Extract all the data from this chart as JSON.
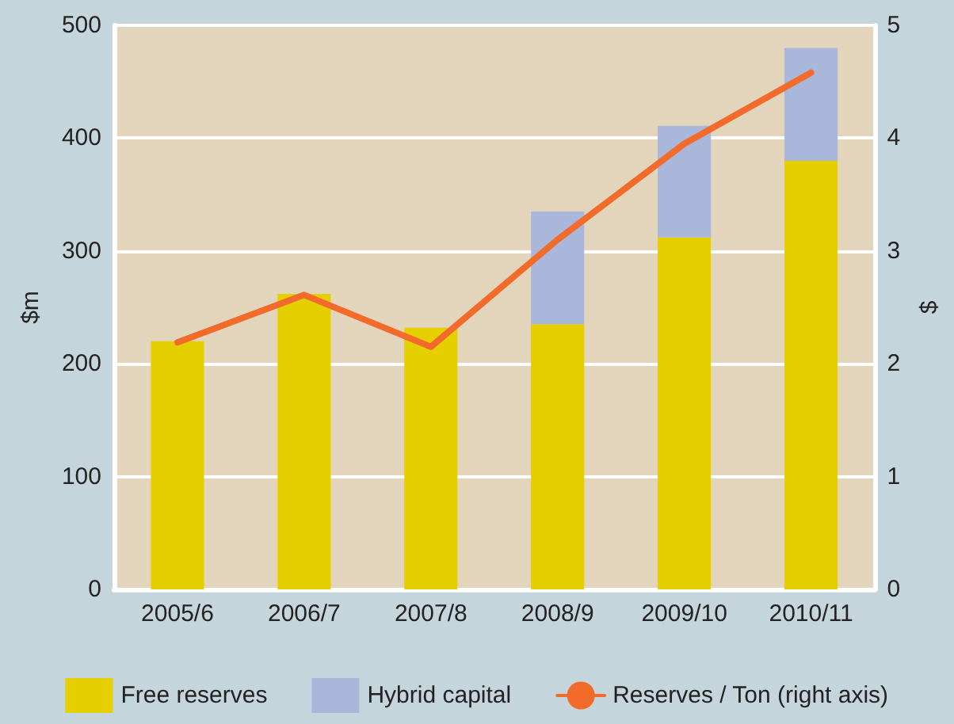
{
  "chart_data": {
    "type": "bar",
    "stacked": true,
    "ylabel": "$m",
    "y2label": "$",
    "categories": [
      "2005/6",
      "2006/7",
      "2007/8",
      "2008/9",
      "2009/10",
      "2010/11"
    ],
    "series": [
      {
        "name": "Free reserves",
        "color": "#e5cf00",
        "values": [
          220,
          262,
          232,
          235,
          312,
          380
        ]
      },
      {
        "name": "Hybrid capital",
        "color": "#a9b7db",
        "values": [
          null,
          null,
          null,
          100,
          99,
          100
        ]
      },
      {
        "name": "Reserves / Ton (right axis)",
        "type": "line",
        "axis": "y2",
        "color": "#f26b2a",
        "values": [
          2.19,
          2.61,
          2.15,
          3.1,
          3.95,
          4.58
        ]
      }
    ],
    "ylim": [
      0,
      500
    ],
    "yticks": [
      0,
      100,
      200,
      300,
      400,
      500
    ],
    "y2lim": [
      0,
      5
    ],
    "y2ticks": [
      0,
      1,
      2,
      3,
      4,
      5
    ],
    "grid": "y",
    "legend": "bottom",
    "marker": "none"
  }
}
